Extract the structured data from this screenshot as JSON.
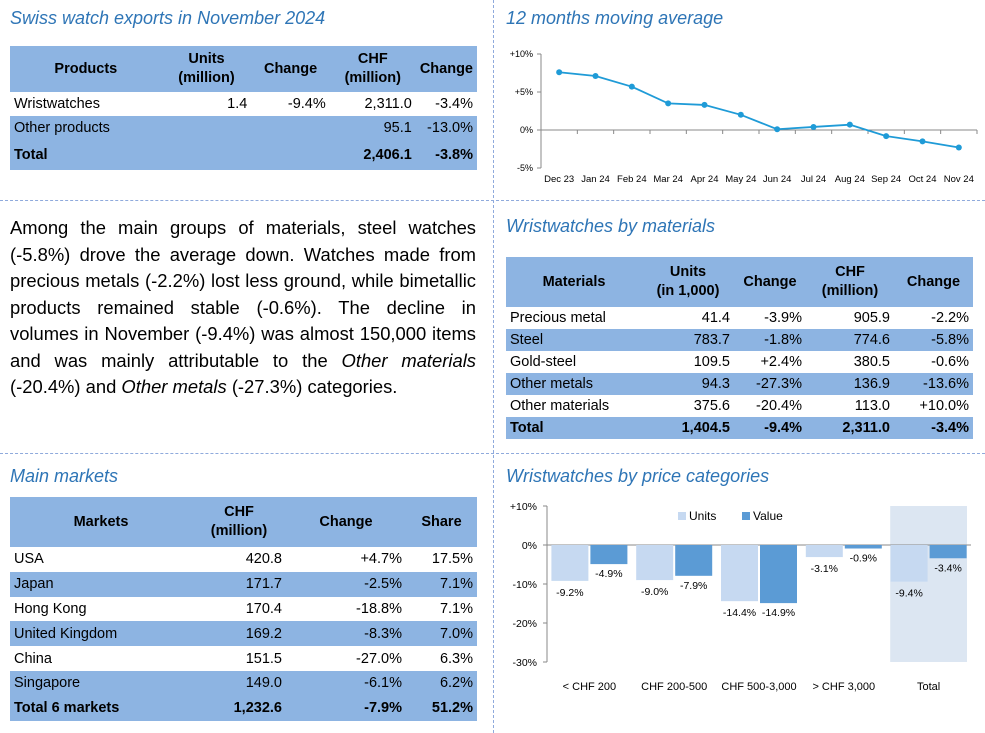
{
  "colors": {
    "accent": "#2E75B6",
    "table_fill": "#8DB4E2",
    "units_bar": "#C6D9F1",
    "value_bar": "#5B9BD5",
    "total_bg": "#DCE6F2",
    "line": "#1F9BD7"
  },
  "exports": {
    "title": "Swiss watch exports in November 2024",
    "headers": [
      "Products",
      "Units\n(million)",
      "Change",
      "CHF\n(million)",
      "Change"
    ],
    "rows": [
      [
        "Wristwatches",
        "1.4",
        "-9.4%",
        "2,311.0",
        "-3.4%"
      ],
      [
        "Other products",
        "",
        "",
        "95.1",
        "-13.0%"
      ]
    ],
    "total": [
      "Total",
      "",
      "",
      "2,406.1",
      "-3.8%"
    ]
  },
  "paragraph": {
    "p1": "Among the main groups of materials, steel watches (-5.8%) drove the average down. Watches made from precious metals (-2.2%) lost less ground, while bimetallic products remained stable (-0.6%). The decline in volumes in November (-9.4%) was almost 150,000 items and was mainly attributable to the ",
    "i1": "Other materials",
    "p2": " (-20.4%) and ",
    "i2": "Other metals",
    "p3": " (-27.3%) categories."
  },
  "materials": {
    "title": "Wristwatches by materials",
    "headers": [
      "Materials",
      "Units\n(in 1,000)",
      "Change",
      "CHF\n(million)",
      "Change"
    ],
    "rows": [
      [
        "Precious metal",
        "41.4",
        "-3.9%",
        "905.9",
        "-2.2%"
      ],
      [
        "Steel",
        "783.7",
        "-1.8%",
        "774.6",
        "-5.8%"
      ],
      [
        "Gold-steel",
        "109.5",
        "+2.4%",
        "380.5",
        "-0.6%"
      ],
      [
        "Other metals",
        "94.3",
        "-27.3%",
        "136.9",
        "-13.6%"
      ],
      [
        "Other materials",
        "375.6",
        "-20.4%",
        "113.0",
        "+10.0%"
      ]
    ],
    "total": [
      "Total",
      "1,404.5",
      "-9.4%",
      "2,311.0",
      "-3.4%"
    ]
  },
  "markets": {
    "title": "Main markets",
    "headers": [
      "Markets",
      "CHF\n(million)",
      "Change",
      "Share"
    ],
    "rows": [
      [
        "USA",
        "420.8",
        "+4.7%",
        "17.5%"
      ],
      [
        "Japan",
        "171.7",
        "-2.5%",
        "7.1%"
      ],
      [
        "Hong Kong",
        "170.4",
        "-18.8%",
        "7.1%"
      ],
      [
        "United Kingdom",
        "169.2",
        "-8.3%",
        "7.0%"
      ],
      [
        "China",
        "151.5",
        "-27.0%",
        "6.3%"
      ],
      [
        "Singapore",
        "149.0",
        "-6.1%",
        "6.2%"
      ]
    ],
    "total": [
      "Total 6 markets",
      "1,232.6",
      "-7.9%",
      "51.2%"
    ]
  },
  "chart_data": [
    {
      "type": "line",
      "title": "12 months moving average",
      "x": [
        "Dec 23",
        "Jan 24",
        "Feb 24",
        "Mar 24",
        "Apr 24",
        "May 24",
        "Jun 24",
        "Jul 24",
        "Aug 24",
        "Sep 24",
        "Oct 24",
        "Nov 24"
      ],
      "values": [
        7.6,
        7.1,
        5.7,
        3.5,
        3.3,
        2.0,
        0.1,
        0.4,
        0.7,
        -0.8,
        -1.5,
        -2.3
      ],
      "ylim": [
        -5,
        10
      ],
      "yticks": [
        "+10%",
        "+5%",
        "0%",
        "-5%"
      ],
      "grid": false
    },
    {
      "type": "bar",
      "title": "Wristwatches by price categories",
      "categories": [
        "< CHF 200",
        "CHF 200-500",
        "CHF 500-3,000",
        "> CHF 3,000",
        "Total"
      ],
      "series": [
        {
          "name": "Units",
          "values": [
            -9.2,
            -9.0,
            -14.4,
            -3.1,
            -9.4
          ],
          "labels": [
            "-9.2%",
            "-9.0%",
            "-14.4%",
            "-3.1%",
            "-9.4%"
          ]
        },
        {
          "name": "Value",
          "values": [
            -4.9,
            -7.9,
            -14.9,
            -0.9,
            -3.4
          ],
          "labels": [
            "-4.9%",
            "-7.9%",
            "-14.9%",
            "-0.9%",
            "-3.4%"
          ]
        }
      ],
      "ylim": [
        -30,
        10
      ],
      "yticks": [
        "+10%",
        "0%",
        "-10%",
        "-20%",
        "-30%"
      ],
      "legend": "top",
      "highlight_category": "Total"
    }
  ]
}
